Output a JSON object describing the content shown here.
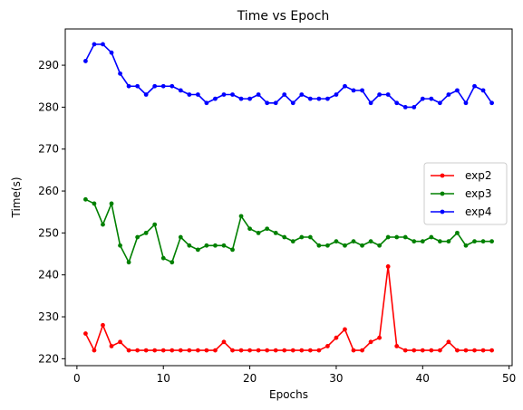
{
  "chart_data": {
    "type": "line",
    "title": "Time vs Epoch",
    "xlabel": "Epochs",
    "ylabel": "Time(s)",
    "xlim": [
      -1.35,
      50.35
    ],
    "ylim": [
      218.35,
      298.65
    ],
    "xticks": [
      0,
      10,
      20,
      30,
      40,
      50
    ],
    "yticks": [
      220,
      230,
      240,
      250,
      260,
      270,
      280,
      290
    ],
    "grid": false,
    "legend_position": "center-right",
    "x": [
      1,
      2,
      3,
      4,
      5,
      6,
      7,
      8,
      9,
      10,
      11,
      12,
      13,
      14,
      15,
      16,
      17,
      18,
      19,
      20,
      21,
      22,
      23,
      24,
      25,
      26,
      27,
      28,
      29,
      30,
      31,
      32,
      33,
      34,
      35,
      36,
      37,
      38,
      39,
      40,
      41,
      42,
      43,
      44,
      45,
      46,
      47,
      48
    ],
    "series": [
      {
        "name": "exp2",
        "color": "#ff0000",
        "marker": "dot",
        "values": [
          226,
          222,
          228,
          223,
          224,
          222,
          222,
          222,
          222,
          222,
          222,
          222,
          222,
          222,
          222,
          222,
          224,
          222,
          222,
          222,
          222,
          222,
          222,
          222,
          222,
          222,
          222,
          222,
          223,
          225,
          227,
          222,
          222,
          224,
          225,
          242,
          223,
          222,
          222,
          222,
          222,
          222,
          224,
          222,
          222,
          222,
          222,
          222
        ]
      },
      {
        "name": "exp3",
        "color": "#008000",
        "marker": "dot",
        "values": [
          258,
          257,
          252,
          257,
          247,
          243,
          249,
          250,
          252,
          244,
          243,
          249,
          247,
          246,
          247,
          247,
          247,
          246,
          254,
          251,
          250,
          251,
          250,
          249,
          248,
          249,
          249,
          247,
          247,
          248,
          247,
          248,
          247,
          248,
          247,
          249,
          249,
          249,
          248,
          248,
          249,
          248,
          248,
          250,
          247,
          248,
          248,
          248
        ]
      },
      {
        "name": "exp4",
        "color": "#0000ff",
        "marker": "dot",
        "values": [
          291,
          295,
          295,
          293,
          288,
          285,
          285,
          283,
          285,
          285,
          285,
          284,
          283,
          283,
          281,
          282,
          283,
          283,
          282,
          282,
          283,
          281,
          281,
          283,
          281,
          283,
          282,
          282,
          282,
          283,
          285,
          284,
          284,
          281,
          283,
          283,
          281,
          280,
          280,
          282,
          282,
          281,
          283,
          284,
          281,
          285,
          284,
          281
        ]
      }
    ]
  }
}
